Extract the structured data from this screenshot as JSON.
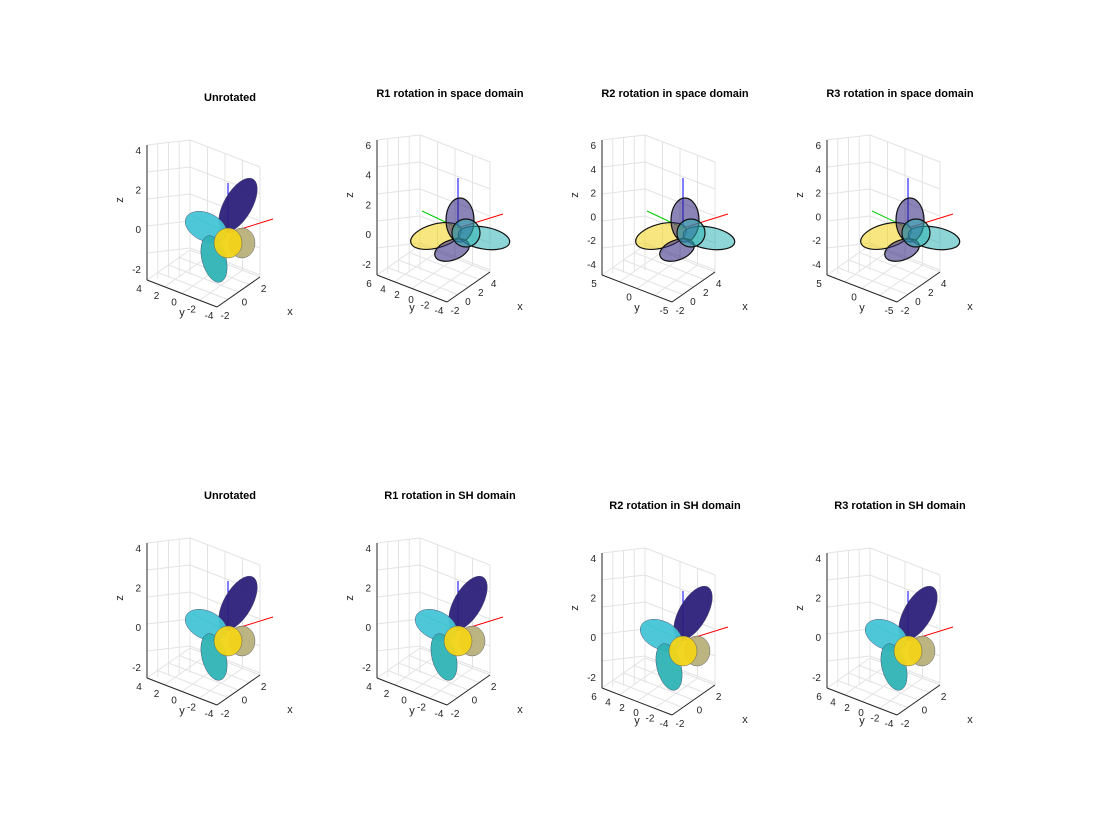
{
  "figure": {
    "panels": [
      {
        "title": "Unrotated",
        "xlabel": "x",
        "ylabel": "y",
        "zlabel": "z",
        "xticks": [
          "-2",
          "0",
          "2"
        ],
        "yticks": [
          "4",
          "2",
          "0",
          "-2",
          "-4"
        ],
        "zticks": [
          "4",
          "2",
          "0",
          "-2"
        ],
        "style": "surface"
      },
      {
        "title": "R1 rotation in space domain",
        "xlabel": "x",
        "ylabel": "y",
        "zlabel": "z",
        "xticks": [
          "-2",
          "0",
          "2",
          "4"
        ],
        "yticks": [
          "6",
          "4",
          "2",
          "0",
          "-2",
          "-4"
        ],
        "zticks": [
          "6",
          "4",
          "2",
          "0",
          "-2"
        ],
        "style": "mesh"
      },
      {
        "title": "R2 rotation in space domain",
        "xlabel": "x",
        "ylabel": "y",
        "zlabel": "z",
        "xticks": [
          "-2",
          "0",
          "2",
          "4"
        ],
        "yticks": [
          "5",
          "0",
          "-5"
        ],
        "zticks": [
          "6",
          "4",
          "2",
          "0",
          "-2",
          "-4"
        ],
        "style": "mesh"
      },
      {
        "title": "R3 rotation in space domain",
        "xlabel": "x",
        "ylabel": "y",
        "zlabel": "z",
        "xticks": [
          "-2",
          "0",
          "2",
          "4"
        ],
        "yticks": [
          "5",
          "0",
          "-5"
        ],
        "zticks": [
          "6",
          "4",
          "2",
          "0",
          "-2",
          "-4"
        ],
        "style": "mesh"
      },
      {
        "title": "Unrotated",
        "xlabel": "x",
        "ylabel": "y",
        "zlabel": "z",
        "xticks": [
          "-2",
          "0",
          "2"
        ],
        "yticks": [
          "4",
          "2",
          "0",
          "-2",
          "-4"
        ],
        "zticks": [
          "4",
          "2",
          "0",
          "-2"
        ],
        "style": "surface"
      },
      {
        "title": "R1 rotation in SH domain",
        "xlabel": "x",
        "ylabel": "y",
        "zlabel": "z",
        "xticks": [
          "-2",
          "0",
          "2"
        ],
        "yticks": [
          "4",
          "2",
          "0",
          "-2",
          "-4"
        ],
        "zticks": [
          "4",
          "2",
          "0",
          "-2"
        ],
        "style": "surface"
      },
      {
        "title": "R2 rotation in SH domain",
        "xlabel": "x",
        "ylabel": "y",
        "zlabel": "z",
        "xticks": [
          "-2",
          "0",
          "2"
        ],
        "yticks": [
          "6",
          "4",
          "2",
          "0",
          "-2",
          "-4"
        ],
        "zticks": [
          "4",
          "2",
          "0",
          "-2"
        ],
        "style": "surface"
      },
      {
        "title": "R3 rotation in SH domain",
        "xlabel": "x",
        "ylabel": "y",
        "zlabel": "z",
        "xticks": [
          "-2",
          "0",
          "2"
        ],
        "yticks": [
          "6",
          "4",
          "2",
          "0",
          "-2",
          "-4"
        ],
        "zticks": [
          "4",
          "2",
          "0",
          "-2"
        ],
        "style": "surface"
      }
    ],
    "colors": {
      "x_axis": "#ff0000",
      "y_axis": "#00cc00",
      "z_axis": "#0000ff",
      "dark_blue": "#2b1f7a",
      "teal": "#2fb3b5",
      "cyan": "#45c4d6",
      "yellow": "#f2d418",
      "olive": "#b8b07a"
    }
  }
}
